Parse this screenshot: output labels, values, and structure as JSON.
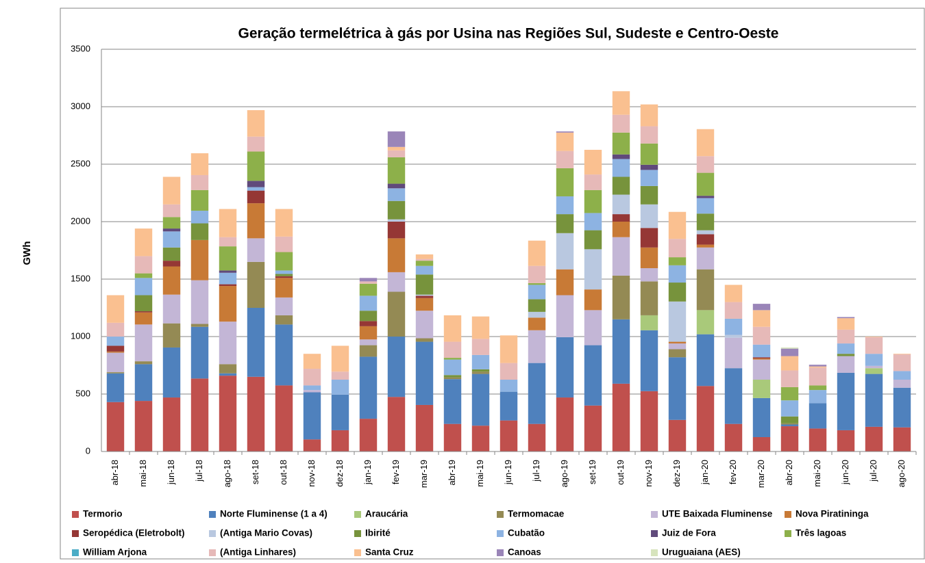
{
  "chart_data": {
    "type": "stacked_bar",
    "title": "Geração termelétrica à gás por Usina nas Regiões Sul, Sudeste e Centro-Oeste",
    "y_label": "GWh",
    "categories": [
      "abr-18",
      "mai-18",
      "jun-18",
      "jul-18",
      "ago-18",
      "set-18",
      "out-18",
      "nov-18",
      "dez-18",
      "jan-19",
      "fev-19",
      "mar-19",
      "abr-19",
      "mai-19",
      "jun-19",
      "jul-19",
      "ago-19",
      "set-19",
      "out-19",
      "nov-19",
      "dez-19",
      "jan-20",
      "fev-20",
      "mar-20",
      "abr-20",
      "mai-20",
      "jun-20",
      "jul-20",
      "ago-20"
    ],
    "ylim": [
      0,
      3500
    ],
    "yticks": [
      0,
      500,
      1000,
      1500,
      2000,
      2500,
      3000,
      3500
    ],
    "grid": true,
    "legend": "bottom",
    "series": [
      {
        "name": "Termorio",
        "color": "#c0504d",
        "values": [
          430,
          440,
          470,
          635,
          660,
          650,
          575,
          105,
          185,
          285,
          475,
          405,
          240,
          225,
          270,
          240,
          470,
          400,
          590,
          525,
          275,
          570,
          240,
          125,
          220,
          200,
          185,
          215,
          210
        ]
      },
      {
        "name": "Norte Fluminense (1 a 4)",
        "color": "#4f81bd",
        "values": [
          250,
          320,
          435,
          450,
          20,
          600,
          530,
          410,
          310,
          540,
          525,
          550,
          390,
          450,
          250,
          530,
          525,
          525,
          560,
          530,
          545,
          450,
          485,
          340,
          15,
          220,
          500,
          460,
          345
        ]
      },
      {
        "name": "Araucária",
        "color": "#a9c97a",
        "values": [
          0,
          0,
          0,
          0,
          0,
          0,
          0,
          0,
          0,
          0,
          0,
          0,
          0,
          0,
          0,
          0,
          0,
          0,
          0,
          130,
          0,
          210,
          0,
          160,
          0,
          0,
          0,
          50,
          0
        ]
      },
      {
        "name": "Termomacae",
        "color": "#948a54",
        "values": [
          10,
          25,
          210,
          25,
          80,
          400,
          80,
          0,
          0,
          100,
          390,
          30,
          15,
          20,
          0,
          0,
          0,
          0,
          380,
          295,
          70,
          355,
          0,
          0,
          10,
          0,
          0,
          0,
          0
        ]
      },
      {
        "name": "UTE Baixada Fluminense",
        "color": "#c3b6d6",
        "values": [
          170,
          320,
          250,
          380,
          370,
          205,
          155,
          20,
          0,
          50,
          170,
          240,
          0,
          0,
          0,
          285,
          365,
          305,
          335,
          115,
          50,
          190,
          265,
          175,
          0,
          0,
          145,
          20,
          70
        ]
      },
      {
        "name": "Nova Piratininga",
        "color": "#c87a36",
        "values": [
          10,
          105,
          245,
          350,
          310,
          305,
          170,
          0,
          0,
          115,
          295,
          110,
          0,
          0,
          0,
          110,
          225,
          180,
          135,
          180,
          15,
          25,
          0,
          10,
          0,
          0,
          0,
          0,
          0
        ]
      },
      {
        "name": "Seropédica  (Eletrobolt)",
        "color": "#953735",
        "values": [
          50,
          10,
          50,
          0,
          15,
          110,
          15,
          0,
          0,
          45,
          145,
          20,
          0,
          0,
          0,
          0,
          0,
          0,
          65,
          170,
          0,
          90,
          0,
          10,
          0,
          0,
          0,
          0,
          0
        ]
      },
      {
        "name": "(Antiga Mario Covas)",
        "color": "#b9c8e0",
        "values": [
          0,
          0,
          0,
          0,
          0,
          0,
          0,
          0,
          0,
          0,
          20,
          10,
          0,
          0,
          0,
          50,
          315,
          350,
          170,
          205,
          350,
          35,
          25,
          0,
          0,
          0,
          0,
          0,
          0
        ]
      },
      {
        "name": "Ibirité",
        "color": "#77933c",
        "values": [
          0,
          140,
          115,
          145,
          0,
          0,
          20,
          0,
          0,
          90,
          160,
          175,
          20,
          20,
          0,
          110,
          165,
          165,
          155,
          160,
          165,
          145,
          0,
          0,
          60,
          0,
          20,
          0,
          0
        ]
      },
      {
        "name": "Cubatão",
        "color": "#8db3e2",
        "values": [
          80,
          150,
          140,
          110,
          100,
          30,
          30,
          40,
          130,
          130,
          110,
          75,
          135,
          125,
          105,
          125,
          155,
          150,
          155,
          140,
          150,
          135,
          140,
          110,
          140,
          115,
          90,
          105,
          75
        ]
      },
      {
        "name": "Juiz de Fora",
        "color": "#604a7b",
        "values": [
          0,
          0,
          25,
          0,
          20,
          55,
          0,
          0,
          0,
          0,
          40,
          0,
          0,
          0,
          0,
          0,
          0,
          0,
          40,
          45,
          0,
          20,
          0,
          0,
          0,
          0,
          0,
          0,
          0
        ]
      },
      {
        "name": "Três lagoas",
        "color": "#8db04a",
        "values": [
          0,
          40,
          100,
          180,
          210,
          255,
          160,
          0,
          0,
          105,
          230,
          45,
          15,
          0,
          0,
          15,
          245,
          200,
          190,
          185,
          70,
          200,
          0,
          0,
          115,
          40,
          0,
          0,
          0
        ]
      },
      {
        "name": "William Arjona",
        "color": "#4bacc6",
        "values": [
          0,
          0,
          0,
          0,
          0,
          0,
          0,
          0,
          0,
          0,
          0,
          0,
          0,
          0,
          0,
          0,
          0,
          0,
          0,
          0,
          0,
          0,
          0,
          0,
          0,
          0,
          0,
          0,
          0
        ]
      },
      {
        "name": "(Antiga Linhares)",
        "color": "#e6b9b8",
        "values": [
          120,
          150,
          110,
          130,
          80,
          130,
          135,
          145,
          70,
          20,
          60,
          15,
          140,
          140,
          145,
          150,
          150,
          135,
          155,
          150,
          160,
          145,
          145,
          155,
          145,
          155,
          120,
          145,
          145
        ]
      },
      {
        "name": "Santa Cruz",
        "color": "#fac090",
        "values": [
          240,
          240,
          240,
          190,
          245,
          230,
          240,
          130,
          225,
          0,
          30,
          40,
          230,
          195,
          240,
          220,
          160,
          215,
          205,
          190,
          235,
          235,
          150,
          145,
          125,
          10,
          100,
          5,
          5
        ]
      },
      {
        "name": "Canoas",
        "color": "#9a85b8",
        "values": [
          0,
          0,
          0,
          0,
          0,
          0,
          0,
          0,
          0,
          30,
          135,
          0,
          0,
          0,
          0,
          0,
          10,
          0,
          0,
          0,
          0,
          0,
          0,
          55,
          65,
          15,
          10,
          0,
          0
        ]
      },
      {
        "name": "Uruguaiana (AES)",
        "color": "#d7e4bd",
        "values": [
          0,
          0,
          0,
          0,
          0,
          0,
          0,
          0,
          0,
          0,
          0,
          0,
          0,
          0,
          0,
          0,
          0,
          0,
          0,
          0,
          0,
          0,
          0,
          0,
          10,
          0,
          0,
          0,
          0
        ]
      }
    ]
  }
}
